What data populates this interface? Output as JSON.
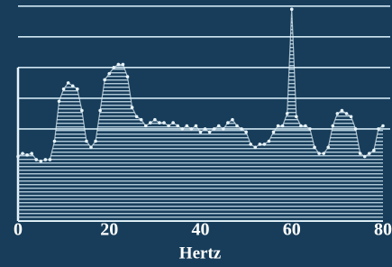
{
  "chart_data": {
    "type": "line",
    "xlabel": "Hertz",
    "x": [
      0,
      1,
      2,
      3,
      4,
      5,
      6,
      7,
      8,
      9,
      10,
      11,
      12,
      13,
      14,
      15,
      16,
      17,
      18,
      19,
      20,
      21,
      22,
      23,
      24,
      25,
      26,
      27,
      28,
      29,
      30,
      31,
      32,
      33,
      34,
      35,
      36,
      37,
      38,
      39,
      40,
      41,
      42,
      43,
      44,
      45,
      46,
      47,
      48,
      49,
      50,
      51,
      52,
      53,
      54,
      55,
      56,
      57,
      58,
      59,
      60,
      61,
      62,
      63,
      64,
      65,
      66,
      67,
      68,
      69,
      70,
      71,
      72,
      73,
      74,
      75,
      76,
      77,
      78,
      79,
      80
    ],
    "series": [
      {
        "color": "#e8f4fa",
        "values": [
          2.1,
          2.2,
          2.15,
          2.2,
          2.0,
          1.95,
          2.0,
          2.0,
          2.6,
          3.9,
          4.3,
          4.5,
          4.4,
          4.3,
          3.6,
          2.6,
          2.4,
          2.6,
          3.6,
          4.6,
          4.8,
          5.0,
          5.1,
          5.1,
          4.7,
          3.7,
          3.4,
          3.3,
          3.1,
          3.2,
          3.3,
          3.2,
          3.2,
          3.1,
          3.2,
          3.1,
          3.0,
          3.1,
          3.0,
          3.1,
          2.9,
          3.0,
          2.9,
          3.0,
          3.1,
          3.0,
          3.2,
          3.3,
          3.1,
          3.0,
          2.9,
          2.5,
          2.4,
          2.5,
          2.5,
          2.6,
          2.9,
          3.1,
          3.1,
          3.5,
          6.9,
          3.4,
          3.1,
          3.1,
          3.0,
          2.4,
          2.2,
          2.2,
          2.4,
          3.1,
          3.5,
          3.6,
          3.5,
          3.4,
          3.0,
          2.2,
          2.1,
          2.2,
          2.3,
          3.0,
          3.1
        ]
      }
    ],
    "xlim": [
      0,
      80
    ],
    "xticks": [
      0,
      20,
      40,
      60,
      80
    ],
    "ylim": [
      0,
      7.2
    ],
    "hlines": [
      3,
      4,
      5,
      6,
      7
    ]
  }
}
